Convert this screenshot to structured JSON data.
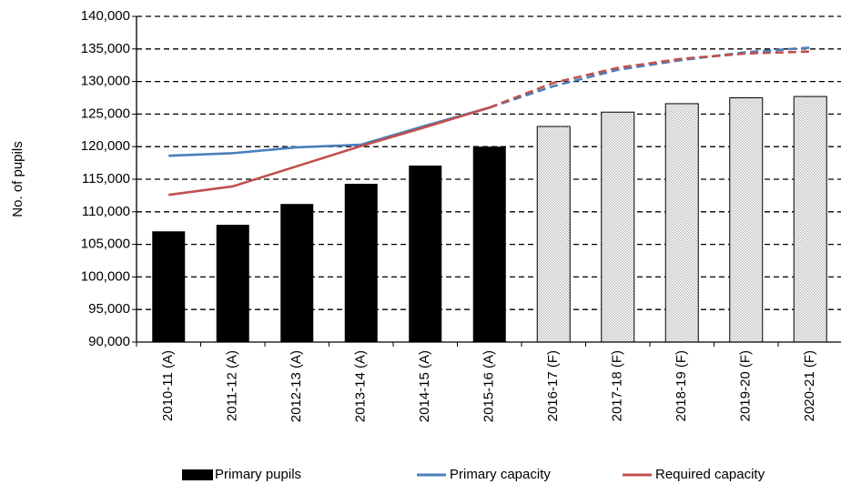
{
  "chart_data": {
    "type": "bar_line",
    "y_axis_label": "No. of pupils",
    "categories": [
      "2010-11 (A)",
      "2011-12 (A)",
      "2012-13 (A)",
      "2013-14 (A)",
      "2014-15 (A)",
      "2015-16 (A)",
      "2016-17 (F)",
      "2017-18 (F)",
      "2018-19 (F)",
      "2019-20 (F)",
      "2020-21 (F)"
    ],
    "forecast_from": 6,
    "series": [
      {
        "name": "Primary pupils",
        "kind": "bar",
        "color": "#000000",
        "forecast_color": "#bdbdbd",
        "values": [
          107000,
          108000,
          111200,
          114300,
          117100,
          120000,
          123100,
          125300,
          126600,
          127500,
          127700
        ]
      },
      {
        "name": "Primary capacity",
        "kind": "line",
        "color": "#4a7ebb",
        "values": [
          118600,
          119000,
          119900,
          120300,
          123200,
          126000,
          129300,
          131800,
          133300,
          134500,
          135200
        ]
      },
      {
        "name": "Required capacity",
        "kind": "line",
        "color": "#c0504d",
        "values": [
          112600,
          113900,
          117000,
          120100,
          123000,
          126000,
          129800,
          132100,
          133500,
          134300,
          134600
        ]
      }
    ],
    "ylim": [
      90000,
      140000
    ],
    "yticks": [
      {
        "value": 90000,
        "label": "90,000"
      },
      {
        "value": 95000,
        "label": "95,000"
      },
      {
        "value": 100000,
        "label": "100,000"
      },
      {
        "value": 105000,
        "label": "105,000"
      },
      {
        "value": 110000,
        "label": "110,000"
      },
      {
        "value": 115000,
        "label": "115,000"
      },
      {
        "value": 120000,
        "label": "120,000"
      },
      {
        "value": 125000,
        "label": "125,000"
      },
      {
        "value": 130000,
        "label": "130,000"
      },
      {
        "value": 135000,
        "label": "135,000"
      },
      {
        "value": 140000,
        "label": "140,000"
      }
    ],
    "grid": true,
    "legend": "bottom"
  }
}
